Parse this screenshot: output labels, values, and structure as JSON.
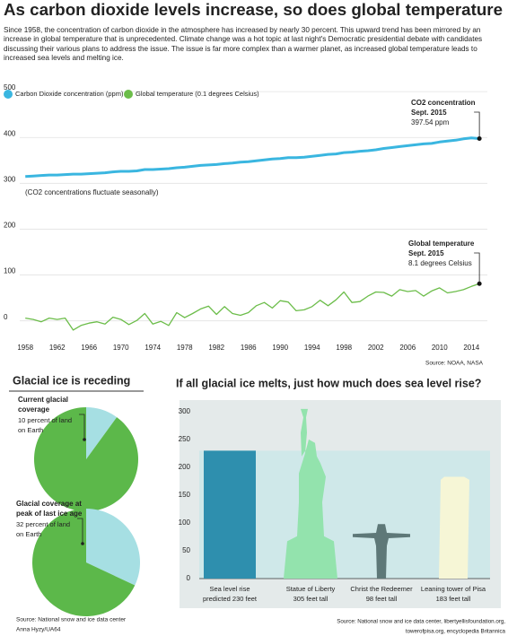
{
  "header": {
    "title": "As carbon dioxide levels increase, so does global temperature",
    "text": "Since 1958, the concentration of carbon dioxide in the atmosphere has increased by nearly 30 percent. This upward trend has been mirrored by an increase in global temperature that is unprecedented. Climate change was a hot topic at last night's Democratic presidential debate with candidates discussing their various plans to address the issue. The issue is far more complex than a warmer planet, as increased global temperature leads to increased sea levels and melting ice."
  },
  "glacial": {
    "title": "Glacial ice is receding",
    "source": "Source: National snow and ice data center",
    "credit": "Anna Hyzy/UA64"
  },
  "chart_data": [
    {
      "type": "line",
      "x": [
        1958,
        1959,
        1960,
        1961,
        1962,
        1963,
        1964,
        1965,
        1966,
        1967,
        1968,
        1969,
        1970,
        1971,
        1972,
        1973,
        1974,
        1975,
        1976,
        1977,
        1978,
        1979,
        1980,
        1981,
        1982,
        1983,
        1984,
        1985,
        1986,
        1987,
        1988,
        1989,
        1990,
        1991,
        1992,
        1993,
        1994,
        1995,
        1996,
        1997,
        1998,
        1999,
        2000,
        2001,
        2002,
        2003,
        2004,
        2005,
        2006,
        2007,
        2008,
        2009,
        2010,
        2011,
        2012,
        2013,
        2014,
        2015
      ],
      "series": [
        {
          "name": "Carbon Dioxide concentration (ppm)",
          "color": "#3ab6e0",
          "values": [
            315,
            316,
            317,
            318,
            318,
            319,
            320,
            320,
            321,
            322,
            323,
            325,
            326,
            326,
            327,
            330,
            330,
            331,
            332,
            334,
            335,
            337,
            339,
            340,
            341,
            343,
            344,
            346,
            347,
            349,
            351,
            353,
            354,
            356,
            356,
            357,
            359,
            361,
            363,
            364,
            367,
            368,
            370,
            371,
            373,
            376,
            378,
            380,
            382,
            384,
            386,
            387,
            390,
            392,
            394,
            397,
            399,
            397.54
          ]
        },
        {
          "name": "Global temperature (0.1 degrees Celsius)",
          "color": "#6cbd4a",
          "values": [
            6,
            3,
            -2,
            6,
            3,
            6,
            -20,
            -10,
            -5,
            -2,
            -7,
            8,
            3,
            -8,
            1,
            16,
            -7,
            -1,
            -10,
            18,
            7,
            16,
            26,
            32,
            14,
            31,
            16,
            12,
            18,
            33,
            40,
            28,
            44,
            41,
            22,
            24,
            31,
            45,
            33,
            46,
            63,
            40,
            42,
            54,
            63,
            62,
            54,
            68,
            64,
            66,
            54,
            65,
            72,
            61,
            64,
            68,
            75,
            81
          ]
        }
      ],
      "xlim": [
        1957.3,
        2016
      ],
      "xticks": [
        1958,
        1962,
        1966,
        1970,
        1974,
        1978,
        1982,
        1986,
        1990,
        1994,
        1998,
        2002,
        2006,
        2010,
        2014
      ],
      "ylim": [
        -30,
        510
      ],
      "yticks": [
        0,
        100,
        200,
        300,
        400,
        500
      ],
      "grid": true,
      "annotations": [
        [
          "CO2 concentration",
          "Sept. 2015",
          "397.54 ppm"
        ],
        [
          "Global temperature",
          "Sept. 2015",
          "8.1 degrees Celsius"
        ],
        [
          "(CO2 concentrations fluctuate seasonally)"
        ]
      ],
      "source": "Source: NOAA, NASA"
    },
    {
      "type": "pie",
      "values": [
        10,
        90
      ],
      "colors": [
        "#a6dfe3",
        "#5cb84a"
      ],
      "label": [
        "Current glacial",
        "coverage"
      ],
      "note": [
        "10 percent of land",
        "on Earth"
      ]
    },
    {
      "type": "pie",
      "values": [
        32,
        68
      ],
      "colors": [
        "#a6dfe3",
        "#5cb84a"
      ],
      "label": [
        "Glacial coverage at",
        "peak of last ice age"
      ],
      "note": [
        "32 percent of land",
        "on Earth"
      ]
    },
    {
      "type": "bar",
      "title": "If all glacial ice melts, just how much does sea level rise?",
      "categories": [
        [
          "Sea level rise",
          "predicted 230 feet"
        ],
        [
          "Statue of Liberty",
          "305 feet tall"
        ],
        [
          "Christ the Redeemer",
          "98 feet tall"
        ],
        [
          "Leaning tower of Pisa",
          "183 feet tall"
        ]
      ],
      "values": [
        230,
        305,
        98,
        183
      ],
      "colors": [
        "#2e8fae",
        "#93e3ad",
        "#5e7878",
        "#f6f6d6"
      ],
      "ylim": [
        0,
        315
      ],
      "yticks": [
        0,
        50,
        100,
        150,
        200,
        250,
        300
      ],
      "source": [
        "Source: National snow and ice data center, libertyellisfoundation.org,",
        "towerofpisa.org, encyclopedia Britannica"
      ]
    }
  ]
}
